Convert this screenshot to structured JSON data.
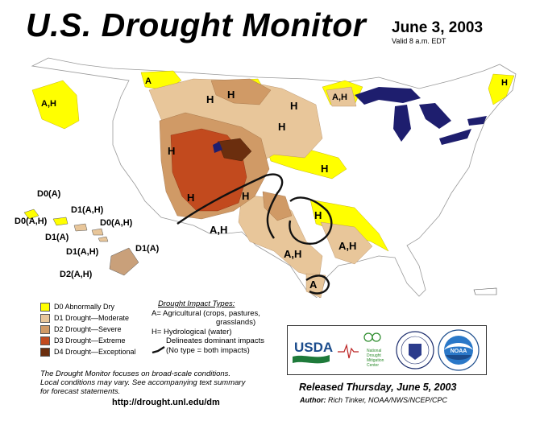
{
  "header": {
    "title": "U.S. Drought Monitor",
    "date": "June 3, 2003",
    "valid": "Valid 8 a.m. EDT"
  },
  "legend": {
    "items": [
      {
        "label": "D0 Abnormally Dry",
        "color": "#ffff00"
      },
      {
        "label": "D1 Drought—Moderate",
        "color": "#fcd37f"
      },
      {
        "label": "D2 Drought—Severe",
        "color": "#ffaa00"
      },
      {
        "label": "D3 Drought—Extreme",
        "color": "#e60000"
      },
      {
        "label": "D4 Drought—Exceptional",
        "color": "#730000"
      }
    ]
  },
  "impacts": {
    "title": "Drought  Impact  Types:",
    "agricultural": "A= Agricultural (crops, pastures,",
    "agricultural_cont": "grasslands)",
    "hydrological": "H= Hydrological (water)",
    "delineates": "Delineates dominant impacts",
    "no_type": "(No type = both impacts)"
  },
  "note": {
    "line1": "The Drought Monitor focuses on broad-scale conditions.",
    "line2": "Local conditions may vary. See accompanying text summary",
    "line3": "for forecast statements."
  },
  "url": "http://drought.unl.edu/dm",
  "footer": {
    "released": "Released Thursday, June 5, 2003",
    "author_label": "Author:",
    "author": "Rich Tinker, NOAA/NWS/NCEP/CPC"
  },
  "logos": {
    "usda": "USDA",
    "ndmc_line1": "National",
    "ndmc_line2": "Drought",
    "ndmc_line3": "Mitigation",
    "ndmc_line4": "Center",
    "noaa": "NOAA"
  },
  "map_labels": {
    "wa": "A,H",
    "mt_west": "A",
    "mn": "A,H",
    "me": "H",
    "mt": "H",
    "nd": "H",
    "sd": "H",
    "ne": "H",
    "id": "H",
    "ut": "H",
    "co": "H",
    "az": "A,H",
    "ks": "H",
    "ok": "H",
    "tx": "A,H",
    "la": "A,H",
    "tx_south": "A",
    "hi_1": "D0(A)",
    "hi_2": "D0(A,H)",
    "hi_3": "D1(A,H)",
    "hi_4": "D0(A,H)",
    "hi_5": "D1(A)",
    "hi_6": "D1(A,H)",
    "hi_7": "D1(A)",
    "hi_8": "D2(A,H)"
  },
  "colors": {
    "d0": "#ffff00",
    "d1": "#fcd37f",
    "d2": "#ffaa00",
    "d3": "#e60000",
    "d4": "#730000",
    "lakes": "#1e1e6e"
  }
}
